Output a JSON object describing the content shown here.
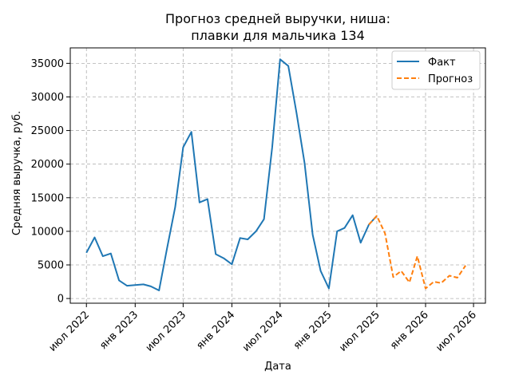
{
  "chart_data": {
    "type": "line",
    "title_lines": [
      "Прогноз средней выручки, ниша:",
      "плавки для мальчика 134"
    ],
    "xlabel": "Дата",
    "ylabel": "Средняя выручка, руб.",
    "x_ticks": [
      {
        "label": "июл 2022",
        "date": "2022-07-01"
      },
      {
        "label": "янв 2023",
        "date": "2023-01-01"
      },
      {
        "label": "июл 2023",
        "date": "2023-07-01"
      },
      {
        "label": "янв 2024",
        "date": "2024-01-01"
      },
      {
        "label": "июл 2024",
        "date": "2024-07-01"
      },
      {
        "label": "янв 2025",
        "date": "2025-01-01"
      },
      {
        "label": "июл 2025",
        "date": "2025-07-01"
      },
      {
        "label": "янв 2026",
        "date": "2026-01-01"
      },
      {
        "label": "июл 2026",
        "date": "2026-07-01"
      }
    ],
    "y_ticks": [
      0,
      5000,
      10000,
      15000,
      20000,
      25000,
      30000,
      35000
    ],
    "y_tick_labels": [
      "0",
      "5000",
      "10000",
      "15000",
      "20000",
      "25000",
      "30000",
      "35000"
    ],
    "ylim": [
      -700,
      37300
    ],
    "xlim": [
      "2022-05-01",
      "2026-08-15"
    ],
    "grid": true,
    "legend_position": "top-right",
    "series": [
      {
        "name": "Факт",
        "color": "#1f77b4",
        "style": "solid",
        "points": [
          [
            "2022-07-01",
            6800
          ],
          [
            "2022-08-01",
            9100
          ],
          [
            "2022-09-01",
            6300
          ],
          [
            "2022-10-01",
            6700
          ],
          [
            "2022-11-01",
            2700
          ],
          [
            "2022-12-01",
            1900
          ],
          [
            "2023-01-01",
            2000
          ],
          [
            "2023-02-01",
            2100
          ],
          [
            "2023-03-01",
            1800
          ],
          [
            "2023-04-01",
            1200
          ],
          [
            "2023-05-01",
            7400
          ],
          [
            "2023-06-01",
            13600
          ],
          [
            "2023-07-01",
            22500
          ],
          [
            "2023-08-01",
            24800
          ],
          [
            "2023-09-01",
            14300
          ],
          [
            "2023-10-01",
            14800
          ],
          [
            "2023-11-01",
            6600
          ],
          [
            "2023-12-01",
            6000
          ],
          [
            "2024-01-01",
            5100
          ],
          [
            "2024-02-01",
            9000
          ],
          [
            "2024-03-01",
            8800
          ],
          [
            "2024-04-01",
            10000
          ],
          [
            "2024-05-01",
            11800
          ],
          [
            "2024-06-01",
            22500
          ],
          [
            "2024-07-01",
            35600
          ],
          [
            "2024-08-01",
            34600
          ],
          [
            "2024-09-01",
            27600
          ],
          [
            "2024-10-01",
            20200
          ],
          [
            "2024-11-01",
            9500
          ],
          [
            "2024-12-01",
            4100
          ],
          [
            "2025-01-01",
            1500
          ],
          [
            "2025-02-01",
            10000
          ],
          [
            "2025-03-01",
            10500
          ],
          [
            "2025-04-01",
            12400
          ],
          [
            "2025-05-01",
            8300
          ],
          [
            "2025-06-01",
            11000
          ],
          [
            "2025-07-01",
            12300
          ]
        ]
      },
      {
        "name": "Прогноз",
        "color": "#ff7f0e",
        "style": "dashed",
        "points": [
          [
            "2025-06-01",
            11000
          ],
          [
            "2025-07-01",
            12300
          ],
          [
            "2025-08-01",
            9700
          ],
          [
            "2025-09-01",
            3200
          ],
          [
            "2025-10-01",
            4100
          ],
          [
            "2025-11-01",
            2400
          ],
          [
            "2025-12-01",
            6300
          ],
          [
            "2026-01-01",
            1500
          ],
          [
            "2026-02-01",
            2500
          ],
          [
            "2026-03-01",
            2300
          ],
          [
            "2026-04-01",
            3400
          ],
          [
            "2026-05-01",
            3100
          ],
          [
            "2026-06-01",
            4900
          ]
        ]
      }
    ]
  }
}
